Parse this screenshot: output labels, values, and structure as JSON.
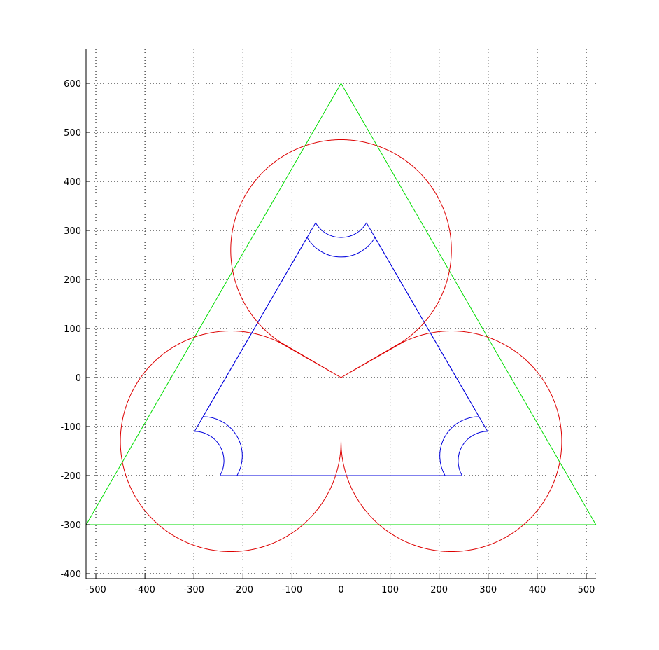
{
  "chart_data": {
    "type": "line",
    "title": "",
    "xlabel": "",
    "ylabel": "",
    "xlim": [
      -520,
      520
    ],
    "ylim": [
      -410,
      670
    ],
    "xticks": [
      -500,
      -400,
      -300,
      -200,
      -100,
      0,
      100,
      200,
      300,
      400,
      500
    ],
    "yticks": [
      -400,
      -300,
      -200,
      -100,
      0,
      100,
      200,
      300,
      400,
      500,
      600
    ],
    "grid": true,
    "legend": "none",
    "colors": {
      "triangle": "#00dd00",
      "trefoil": "#dd0000",
      "track": "#0000dd",
      "axes": "#000000"
    },
    "series": [
      {
        "kind": "polyline",
        "color": "#00dd00",
        "points": [
          [
            -519.6,
            -300
          ],
          [
            0,
            600
          ],
          [
            519.6,
            -300
          ],
          [
            -519.6,
            -300
          ]
        ]
      },
      {
        "kind": "rounded_triangle",
        "color": "#0000dd",
        "corner_radius": 80,
        "corners": [
          [
            0,
            405
          ],
          [
            -351,
            -200
          ],
          [
            351,
            -200
          ]
        ]
      },
      {
        "kind": "rounded_triangle",
        "color": "#0000dd",
        "corner_radius": 60,
        "corners": [
          [
            0,
            405
          ],
          [
            -351,
            -200
          ],
          [
            351,
            -200
          ]
        ]
      },
      {
        "kind": "trefoil",
        "color": "#dd0000",
        "lobes": [
          {
            "center": [
              0,
              260
            ],
            "radius": 225
          },
          {
            "center": [
              -225,
              -130
            ],
            "radius": 225
          },
          {
            "center": [
              225,
              -130
            ],
            "radius": 225
          }
        ],
        "junctions": [
          {
            "center": [
              -141,
              82
            ],
            "radius": 20
          },
          {
            "center": [
              141,
              82
            ],
            "radius": 20
          },
          {
            "center": [
              0,
              -163
            ],
            "radius": 20
          }
        ]
      }
    ]
  }
}
